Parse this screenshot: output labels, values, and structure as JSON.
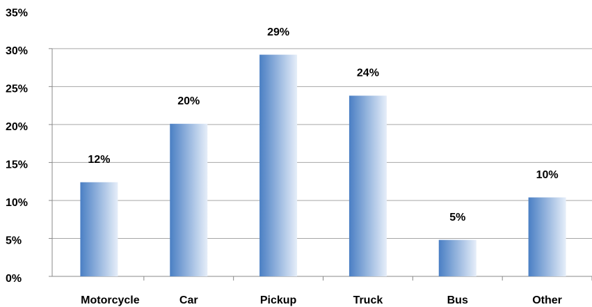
{
  "chart_data": {
    "type": "bar",
    "categories": [
      "Motorcycle",
      "Car",
      "Pickup",
      "Truck",
      "Bus",
      "Other"
    ],
    "values": [
      12.4,
      20.1,
      29.2,
      23.8,
      4.8,
      10.4
    ],
    "value_labels": [
      "12%",
      "20%",
      "29%",
      "24%",
      "5%",
      "10%"
    ],
    "color": "#4a7fc4",
    "ylim": [
      0,
      35
    ],
    "yticks": [
      {
        "value": 0,
        "label": "0%"
      },
      {
        "value": 5,
        "label": "5%"
      },
      {
        "value": 10,
        "label": "10%"
      },
      {
        "value": 15,
        "label": "15%"
      },
      {
        "value": 20,
        "label": "20%"
      },
      {
        "value": 25,
        "label": "25%"
      },
      {
        "value": 30,
        "label": "30%"
      },
      {
        "value": 35,
        "label": "35%"
      }
    ],
    "grid": true
  }
}
